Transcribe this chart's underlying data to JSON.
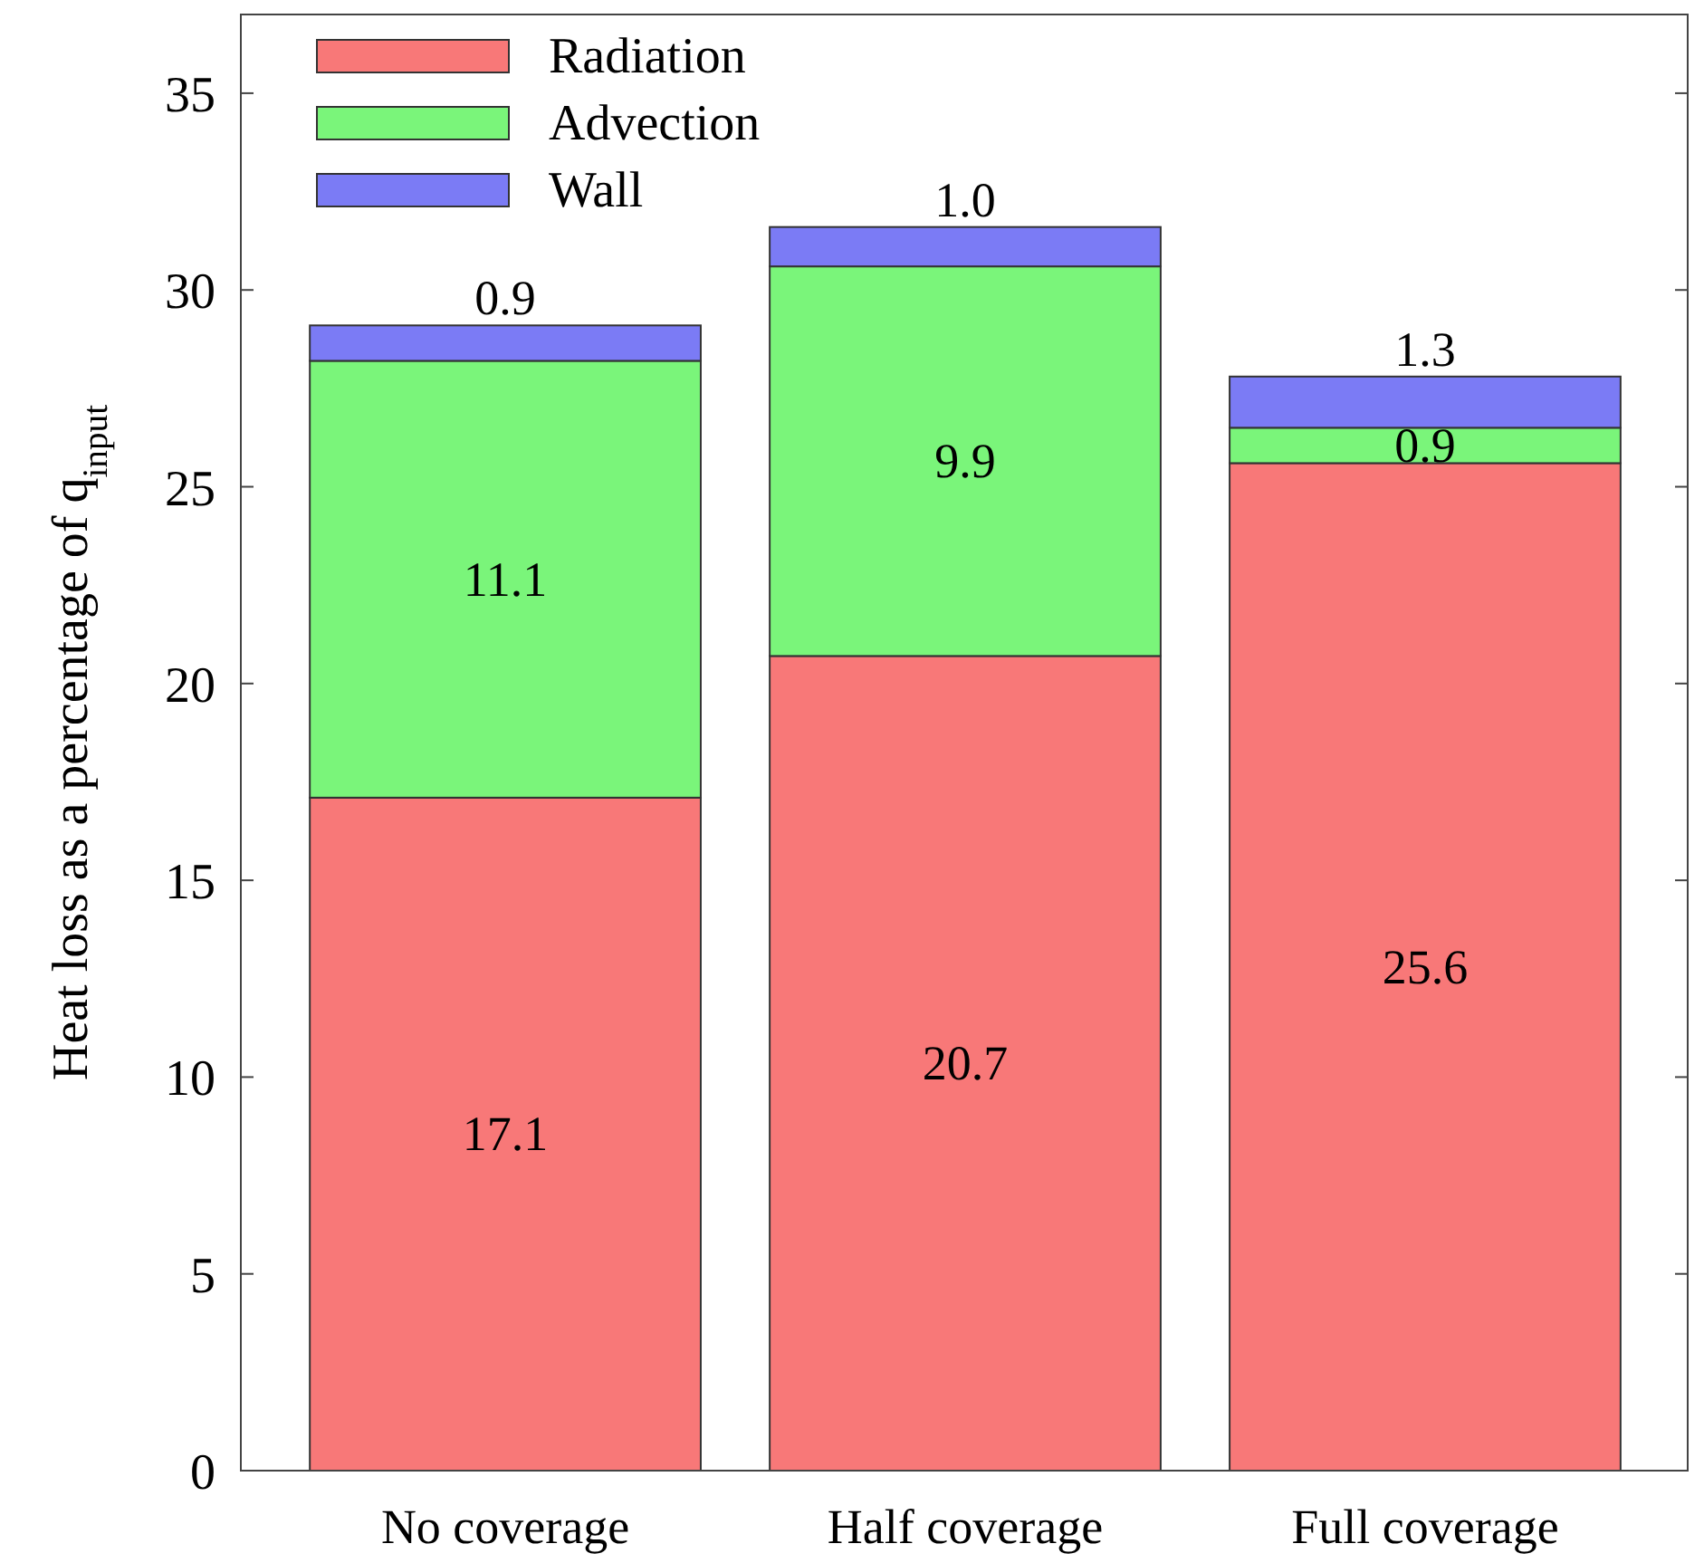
{
  "chart_data": {
    "type": "bar",
    "stacked": true,
    "ylabel": "Heat loss as a percentage of q$_{input}$",
    "categories": [
      "No coverage",
      "Half coverage",
      "Full coverage"
    ],
    "series": [
      {
        "name": "Radiation",
        "color": "#f87878",
        "values": [
          17.1,
          20.7,
          25.6
        ],
        "value_labels": [
          "17.1",
          "20.7",
          "25.6"
        ]
      },
      {
        "name": "Advection",
        "color": "#7af57a",
        "values": [
          11.1,
          9.9,
          0.9
        ],
        "value_labels": [
          "11.1",
          "9.9",
          "0.9"
        ]
      },
      {
        "name": "Wall",
        "color": "#7b7bf5",
        "values": [
          0.9,
          1.0,
          1.3
        ],
        "value_labels": [
          "0.9",
          "1.0",
          "1.3"
        ]
      }
    ],
    "ylim": [
      0,
      37
    ],
    "yticks": [
      0,
      5,
      10,
      15,
      20,
      25,
      30,
      35
    ],
    "legend": "top left",
    "grid": false
  }
}
